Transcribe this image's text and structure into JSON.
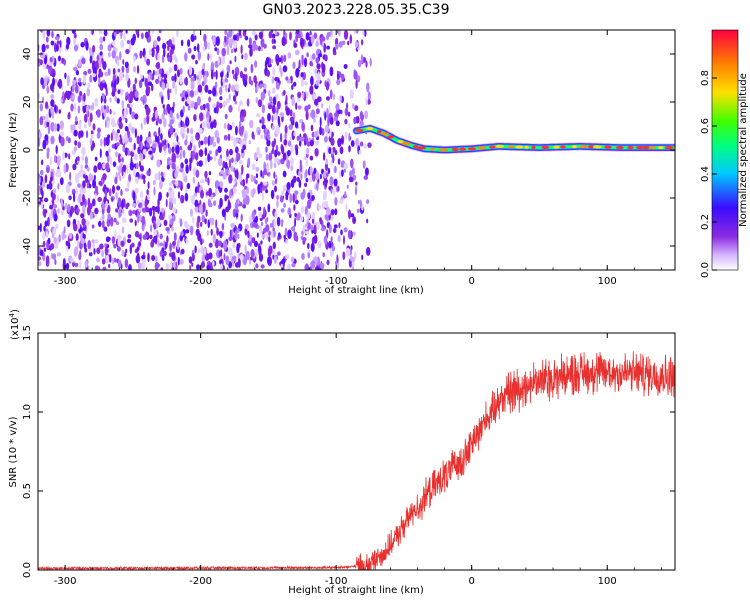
{
  "title": "GN03.2023.228.05.35.C39",
  "chart_data": [
    {
      "type": "heatmap",
      "xlabel": "Height of straight line (km)",
      "ylabel": "Frequency (Hz)",
      "xlim": [
        -320,
        150
      ],
      "ylim": [
        -50,
        50
      ],
      "xticks": [
        "-300",
        "-200",
        "-100",
        "0",
        "100"
      ],
      "xtick_values": [
        -300,
        -200,
        -100,
        0,
        100
      ],
      "yticks": [
        "-40",
        "-20",
        "0",
        "20",
        "40"
      ],
      "ytick_values": [
        -40,
        -20,
        0,
        20,
        40
      ],
      "noise_region": {
        "x_from": -320,
        "x_to": -70
      },
      "signal_track": [
        {
          "x": -85,
          "y": 8
        },
        {
          "x": -75,
          "y": 9
        },
        {
          "x": -65,
          "y": 7
        },
        {
          "x": -55,
          "y": 4
        },
        {
          "x": -45,
          "y": 2
        },
        {
          "x": -35,
          "y": 0.5
        },
        {
          "x": -20,
          "y": 0
        },
        {
          "x": 0,
          "y": 0.5
        },
        {
          "x": 20,
          "y": 1.5
        },
        {
          "x": 50,
          "y": 1
        },
        {
          "x": 80,
          "y": 1.5
        },
        {
          "x": 110,
          "y": 1
        },
        {
          "x": 150,
          "y": 1
        }
      ],
      "colorbar": {
        "label": "Normalized spectral amplitude",
        "range": [
          0,
          1
        ],
        "ticks": [
          "0.0",
          "0.2",
          "0.4",
          "0.6",
          "0.8"
        ],
        "tick_values": [
          0,
          0.2,
          0.4,
          0.6,
          0.8
        ],
        "colors": [
          "#ffffff",
          "#d8b8ff",
          "#8a2be2",
          "#3a0bff",
          "#00c8ff",
          "#00ff80",
          "#40ff00",
          "#ffe000",
          "#ff8000",
          "#ff0040"
        ]
      }
    },
    {
      "type": "line",
      "xlabel": "Height of straight line (km)",
      "ylabel": "SNR (10 * v/v)",
      "scale_label": "(x10",
      "scale_exponent": "4",
      "scale_close": ")",
      "xlim": [
        -320,
        150
      ],
      "ylim": [
        0,
        1.5
      ],
      "xticks": [
        "-300",
        "-200",
        "-100",
        "0",
        "100"
      ],
      "xtick_values": [
        -300,
        -200,
        -100,
        0,
        100
      ],
      "yticks": [
        "0.0",
        "0.5",
        "1.0",
        "1.5"
      ],
      "ytick_values": [
        0,
        0.5,
        1.0,
        1.5
      ],
      "color": "#e8302e",
      "envelope": [
        {
          "x": -320,
          "y": 0.01
        },
        {
          "x": -100,
          "y": 0.015
        },
        {
          "x": -75,
          "y": 0.03
        },
        {
          "x": -60,
          "y": 0.15
        },
        {
          "x": -45,
          "y": 0.35
        },
        {
          "x": -25,
          "y": 0.55
        },
        {
          "x": -5,
          "y": 0.72
        },
        {
          "x": 10,
          "y": 0.95
        },
        {
          "x": 25,
          "y": 1.12
        },
        {
          "x": 50,
          "y": 1.2
        },
        {
          "x": 80,
          "y": 1.25
        },
        {
          "x": 110,
          "y": 1.25
        },
        {
          "x": 150,
          "y": 1.23
        }
      ]
    }
  ]
}
